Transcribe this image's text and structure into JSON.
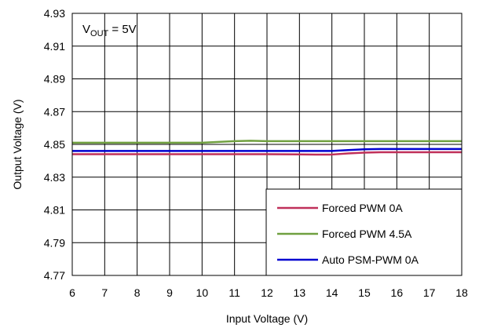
{
  "chart_data": {
    "type": "line",
    "annotation": {
      "main": "V",
      "sub": "OUT",
      "rest": " = 5V"
    },
    "xlabel": "Input Voltage (V)",
    "ylabel": "Output Voltage (V)",
    "xlim": [
      6,
      18
    ],
    "ylim": [
      4.77,
      4.93
    ],
    "x_ticks": [
      6,
      7,
      8,
      9,
      10,
      11,
      12,
      13,
      14,
      15,
      16,
      17,
      18
    ],
    "y_ticks": [
      "4.77",
      "4.79",
      "4.81",
      "4.83",
      "4.85",
      "4.87",
      "4.89",
      "4.91",
      "4.93"
    ],
    "grid": true,
    "legend_position": "bottom-right",
    "series": [
      {
        "name": "Forced PWM 0A",
        "color": "#c0305a",
        "x": [
          6,
          8,
          10,
          12,
          13.5,
          14,
          14.5,
          15,
          15.5,
          16,
          18
        ],
        "y": [
          4.844,
          4.844,
          4.844,
          4.844,
          4.8438,
          4.8438,
          4.8445,
          4.845,
          4.8452,
          4.8452,
          4.8452
        ]
      },
      {
        "name": "Forced PWM 4.5A",
        "color": "#70a040",
        "x": [
          6,
          8,
          10,
          10.5,
          11,
          11.5,
          12,
          14,
          16,
          18
        ],
        "y": [
          4.851,
          4.851,
          4.851,
          4.8515,
          4.852,
          4.8522,
          4.852,
          4.852,
          4.852,
          4.852
        ]
      },
      {
        "name": "Auto PSM-PWM 0A",
        "color": "#0000d0",
        "x": [
          6,
          8,
          10,
          12,
          13.5,
          14,
          14.5,
          15,
          15.5,
          16,
          18
        ],
        "y": [
          4.846,
          4.846,
          4.846,
          4.846,
          4.846,
          4.846,
          4.8465,
          4.847,
          4.8472,
          4.8472,
          4.8472
        ]
      }
    ]
  }
}
